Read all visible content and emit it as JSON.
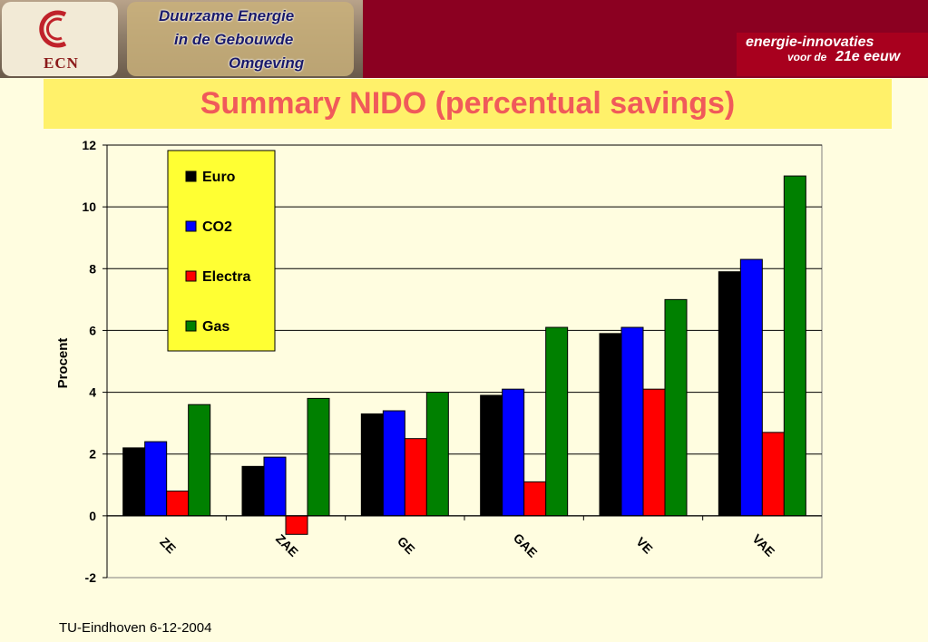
{
  "header": {
    "logo_text": "ECN",
    "project_lines": [
      "Duurzame Energie",
      "in de Gebouwde",
      "Omgeving"
    ],
    "tagline_1": "energie-innovaties",
    "tagline_2": "voor de",
    "tagline_3": "21e eeuw"
  },
  "title": "Summary NIDO (percentual savings)",
  "footer": "TU-Eindhoven 6-12-2004",
  "colors": {
    "Euro": "#000000",
    "CO2": "#0000ff",
    "Electra": "#ff0000",
    "Gas": "#008000",
    "plot_bg": "#fffde0",
    "legend_bg": "#ffff33",
    "title": "#f05a5a"
  },
  "chart_data": {
    "type": "bar",
    "title": "",
    "xlabel": "",
    "ylabel": "Procent",
    "ylim": [
      -2,
      12
    ],
    "yticks": [
      -2,
      0,
      2,
      4,
      6,
      8,
      10,
      12
    ],
    "grid": true,
    "legend_position": "top-left",
    "categories": [
      "ZE",
      "ZAE",
      "GE",
      "GAE",
      "VE",
      "VAE"
    ],
    "series": [
      {
        "name": "Euro",
        "values": [
          2.2,
          1.6,
          3.3,
          3.9,
          5.9,
          7.9
        ]
      },
      {
        "name": "CO2",
        "values": [
          2.4,
          1.9,
          3.4,
          4.1,
          6.1,
          8.3
        ]
      },
      {
        "name": "Electra",
        "values": [
          0.8,
          -0.6,
          2.5,
          1.1,
          4.1,
          2.7
        ]
      },
      {
        "name": "Gas",
        "values": [
          3.6,
          3.8,
          4.0,
          6.1,
          7.0,
          11.0
        ]
      }
    ]
  }
}
